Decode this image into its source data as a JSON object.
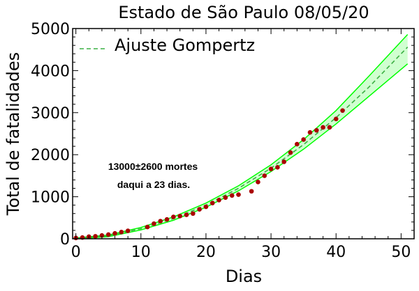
{
  "chart_data": {
    "type": "scatter",
    "title": "Estado de São Paulo 08/05/20",
    "xlabel": "Dias",
    "ylabel": "Total de fatalidades",
    "xlim": [
      -0.5,
      52
    ],
    "ylim": [
      0,
      5000
    ],
    "xticks": [
      0,
      10,
      20,
      30,
      40,
      50
    ],
    "yticks": [
      0,
      1000,
      2000,
      3000,
      4000,
      5000
    ],
    "grid": false,
    "legend": {
      "placement": "top-left",
      "entries": [
        "Ajuste Gompertz"
      ]
    },
    "colors": {
      "points": "#aa0000",
      "fit": "#3cb043",
      "band": "#00ff00",
      "band_fill": "#aaffaa"
    },
    "annotation": [
      "13000±2600 mortes",
      "daqui a 23 dias."
    ],
    "observed": {
      "x": [
        0,
        1,
        2,
        3,
        4,
        5,
        6,
        7,
        8,
        11,
        12,
        13,
        14,
        15,
        16,
        17,
        18,
        19,
        20,
        21,
        22,
        23,
        24,
        25,
        27,
        28,
        29,
        30,
        31,
        32,
        33,
        34,
        35,
        36,
        37,
        38,
        39,
        40,
        41
      ],
      "y": [
        20,
        30,
        50,
        60,
        80,
        100,
        130,
        160,
        190,
        280,
        360,
        420,
        460,
        520,
        540,
        570,
        600,
        700,
        760,
        850,
        920,
        980,
        1030,
        1050,
        1130,
        1350,
        1500,
        1660,
        1700,
        1830,
        2050,
        2250,
        2360,
        2530,
        2580,
        2650,
        2650,
        2850,
        3050
      ]
    },
    "fit": {
      "x": [
        0,
        5,
        10,
        15,
        20,
        25,
        30,
        35,
        40,
        45,
        51
      ],
      "center": [
        10,
        70,
        240,
        480,
        800,
        1200,
        1680,
        2240,
        2880,
        3600,
        4560
      ],
      "upper": [
        20,
        90,
        270,
        520,
        850,
        1260,
        1760,
        2360,
        3050,
        3860,
        4860
      ],
      "lower": [
        0,
        50,
        210,
        440,
        750,
        1140,
        1600,
        2130,
        2730,
        3380,
        4160
      ]
    }
  }
}
